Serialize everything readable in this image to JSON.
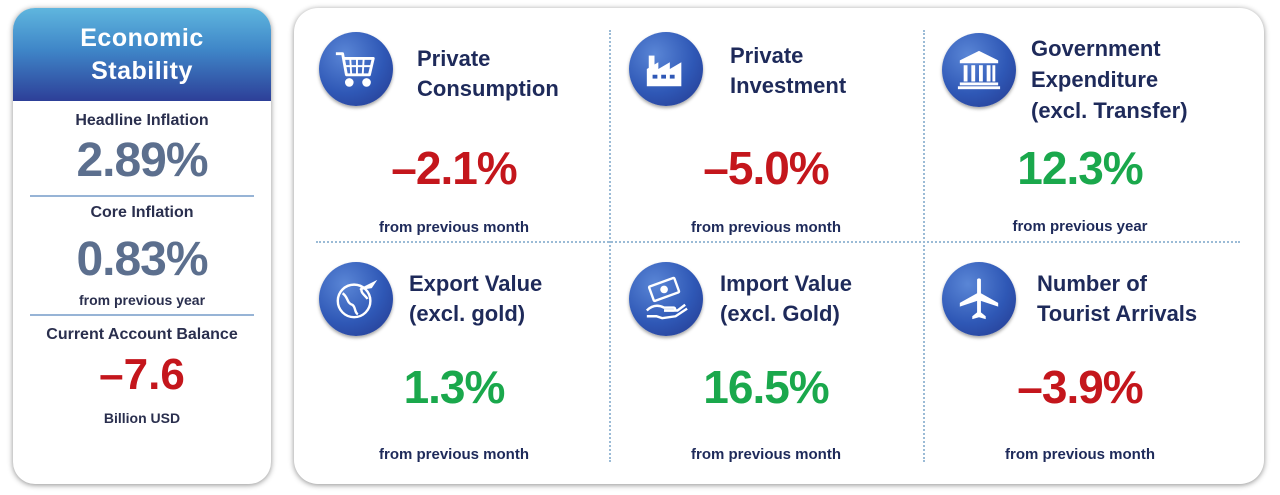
{
  "left": {
    "title_line1": "Economic",
    "title_line2": "Stability",
    "headline_label": "Headline Inflation",
    "headline_value": "2.89%",
    "core_label": "Core Inflation",
    "core_value": "0.83%",
    "core_note": "from previous year",
    "ca_label": "Current Account Balance",
    "ca_value": "–7.6",
    "ca_unit": "Billion USD"
  },
  "cards": [
    {
      "title_line1": "Private",
      "title_line2": "Consumption",
      "title_line3": "",
      "value": "–2.1%",
      "note": "from previous month",
      "icon": "shopping-cart-icon",
      "sign": "negative"
    },
    {
      "title_line1": "Private",
      "title_line2": "Investment",
      "title_line3": "",
      "value": "–5.0%",
      "note": "from previous month",
      "icon": "factory-icon",
      "sign": "negative"
    },
    {
      "title_line1": "Government",
      "title_line2": "Expenditure",
      "title_line3": "(excl. Transfer)",
      "value": "12.3%",
      "note": "from previous year",
      "icon": "government-building-icon",
      "sign": "positive"
    },
    {
      "title_line1": "Export Value",
      "title_line2": "(excl. gold)",
      "title_line3": "",
      "value": "1.3%",
      "note": "from previous month",
      "icon": "globe-plane-icon",
      "sign": "positive"
    },
    {
      "title_line1": "Import Value",
      "title_line2": "(excl. Gold)",
      "title_line3": "",
      "value": "16.5%",
      "note": "from previous month",
      "icon": "money-hand-icon",
      "sign": "positive"
    },
    {
      "title_line1": "Number of",
      "title_line2": "Tourist Arrivals",
      "title_line3": "",
      "value": "–3.9%",
      "note": "from previous month",
      "icon": "airplane-icon",
      "sign": "negative"
    }
  ],
  "colors": {
    "negative": "#c4161c",
    "positive": "#1aa84c",
    "header_gradient_top": "#5fb6de",
    "header_gradient_bottom": "#2d3f98",
    "stat_grey": "#5c6f8e",
    "text_navy": "#1e2a5a"
  }
}
